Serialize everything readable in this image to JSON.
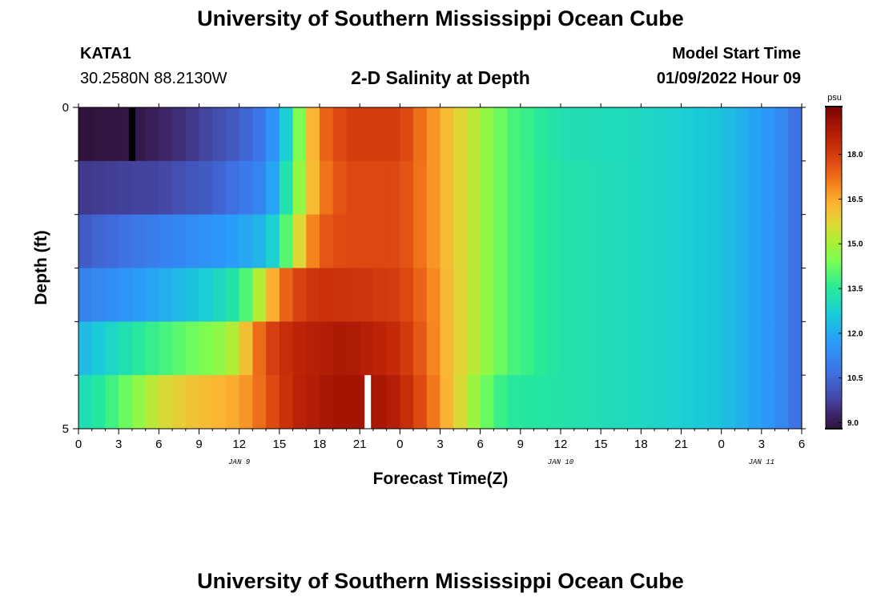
{
  "page": {
    "title": "University of Southern Mississippi Ocean Cube",
    "footer_title": "University of Southern Mississippi Ocean Cube"
  },
  "header": {
    "station": "KATA1",
    "coords": "30.2580N  88.2130W",
    "plot_title": "2-D Salinity at Depth",
    "start_label": "Model Start Time",
    "start_value": "01/09/2022 Hour 09"
  },
  "chart_data": {
    "type": "heatmap",
    "title": "2-D Salinity at Depth",
    "xlabel": "Forecast Time(Z)",
    "ylabel": "Depth (ft)",
    "x_start_hour": 0,
    "x_end_hour": 54,
    "hour_step": 1,
    "depth_range": [
      0,
      5
    ],
    "y_tick_labels": [
      "0",
      "5"
    ],
    "x_tick_labels": [
      "0",
      "3",
      "6",
      "9",
      "12",
      "15",
      "18",
      "21",
      "0",
      "3",
      "6",
      "9",
      "12",
      "15",
      "18",
      "21",
      "0",
      "3",
      "6"
    ],
    "date_labels": [
      {
        "text": "JAN 9",
        "hour": 12
      },
      {
        "text": "JAN 10",
        "hour": 36
      },
      {
        "text": "JAN 11",
        "hour": 51
      }
    ],
    "layers": [
      {
        "kf": [
          0,
          4,
          8,
          12,
          14,
          15,
          16,
          17,
          18,
          20,
          24,
          26,
          28,
          32,
          36,
          42,
          48,
          52,
          54
        ],
        "kv": [
          8.8,
          8.9,
          9.5,
          10.3,
          11.0,
          12.0,
          13.5,
          15.5,
          17.2,
          18.0,
          18.0,
          17.0,
          16.0,
          14.0,
          13.2,
          13.0,
          12.5,
          11.5,
          10.5
        ]
      },
      {
        "kf": [
          0,
          6,
          10,
          14,
          15,
          16,
          17,
          18,
          20,
          24,
          26,
          28,
          32,
          36,
          42,
          48,
          52,
          54
        ],
        "kv": [
          9.6,
          9.8,
          10.3,
          11.3,
          12.5,
          14.0,
          15.5,
          17.0,
          17.8,
          17.8,
          17.0,
          16.0,
          14.0,
          13.3,
          13.0,
          12.5,
          11.5,
          10.5
        ]
      },
      {
        "kf": [
          0,
          4,
          8,
          12,
          14,
          15,
          16,
          17,
          18,
          20,
          24,
          26,
          28,
          32,
          36,
          42,
          48,
          52,
          54
        ],
        "kv": [
          10.2,
          10.8,
          11.3,
          11.8,
          12.3,
          13.3,
          14.8,
          16.5,
          17.5,
          17.8,
          17.8,
          17.0,
          16.0,
          14.0,
          13.3,
          13.0,
          12.5,
          11.5,
          10.5
        ]
      },
      {
        "kf": [
          0,
          3,
          6,
          10,
          12,
          13,
          14,
          15,
          16,
          18,
          24,
          26,
          28,
          32,
          36,
          42,
          48,
          52,
          54
        ],
        "kv": [
          11.0,
          11.5,
          12.0,
          12.8,
          13.5,
          14.5,
          15.8,
          17.0,
          17.8,
          18.3,
          18.0,
          17.2,
          16.0,
          14.0,
          13.3,
          13.0,
          12.5,
          11.5,
          10.5
        ]
      },
      {
        "kf": [
          0,
          2,
          5,
          8,
          11,
          12,
          13,
          14,
          16,
          20,
          24,
          26,
          28,
          32,
          36,
          42,
          48,
          52,
          54
        ],
        "kv": [
          12.2,
          12.8,
          13.6,
          14.2,
          14.8,
          15.5,
          16.8,
          17.8,
          18.5,
          18.9,
          18.3,
          17.3,
          16.0,
          14.0,
          13.3,
          13.0,
          12.5,
          11.5,
          10.5
        ]
      },
      {
        "kf": [
          0,
          2,
          4,
          6,
          8,
          10,
          12,
          14,
          16,
          19,
          22,
          24,
          26,
          28,
          30,
          32,
          36,
          42,
          48,
          52,
          54
        ],
        "kv": [
          13.0,
          13.6,
          14.5,
          15.5,
          16.0,
          16.3,
          16.5,
          17.5,
          18.5,
          19.0,
          19.0,
          18.6,
          17.5,
          16.0,
          14.5,
          13.5,
          13.3,
          13.0,
          12.5,
          11.5,
          10.5
        ]
      }
    ],
    "missing_cells": [
      {
        "layer": 0,
        "hour": 4,
        "color": "#000000"
      },
      {
        "layer": 5,
        "hour": 21.6,
        "color": "#ffffff"
      }
    ],
    "colorbar": {
      "unit": "psu",
      "range": [
        8.8,
        19.6
      ],
      "tick_labels": [
        "9.0",
        "10.5",
        "12.0",
        "13.5",
        "15.0",
        "16.5",
        "18.0"
      ],
      "tick_values": [
        9.0,
        10.5,
        12.0,
        13.5,
        15.0,
        16.5,
        18.0
      ]
    }
  }
}
